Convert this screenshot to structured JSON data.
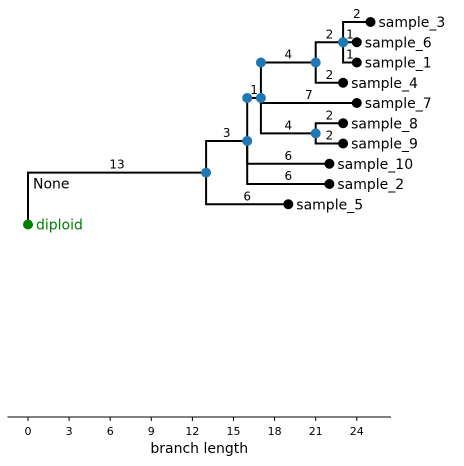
{
  "colors": {
    "internal_node": "#1f77b4",
    "leaf_node": "#000000",
    "root_node": "#008000"
  },
  "chart_data": {
    "type": "phylogenetic-tree",
    "xlabel": "branch length",
    "xticks": [
      0,
      3,
      6,
      9,
      12,
      15,
      18,
      21,
      24
    ],
    "xlim": [
      -1.5,
      26.5
    ],
    "root": {
      "id": "diploid",
      "label": "diploid",
      "x": 0
    },
    "root_note": "None",
    "nodes": [
      {
        "id": "n13",
        "parent": "diploid",
        "x": 13,
        "length": "13"
      },
      {
        "id": "n16a",
        "parent": "n13",
        "x": 16,
        "length": "3"
      },
      {
        "id": "sample_5",
        "parent": "n13",
        "x": 19,
        "length": "6",
        "label": "sample_5",
        "leaf": true
      },
      {
        "id": "n16b",
        "parent": "n16a",
        "x": 16,
        "length": ""
      },
      {
        "id": "sample_10",
        "parent": "n16a",
        "x": 22,
        "length": "6",
        "label": "sample_10",
        "leaf": true
      },
      {
        "id": "sample_2",
        "parent": "n16a",
        "x": 22,
        "length": "6",
        "label": "sample_2",
        "leaf": true
      },
      {
        "id": "n17a",
        "parent": "n16b",
        "x": 17,
        "length": "1"
      },
      {
        "id": "n17b",
        "parent": "n17a",
        "x": 17,
        "length": ""
      },
      {
        "id": "sample_7",
        "parent": "n17a",
        "x": 24,
        "length": "7",
        "label": "sample_7",
        "leaf": true
      },
      {
        "id": "n21a",
        "parent": "n17b",
        "x": 21,
        "length": "4"
      },
      {
        "id": "n21b",
        "parent": "n17a",
        "x": 21,
        "length": "4"
      },
      {
        "id": "n23a",
        "parent": "n21a",
        "x": 23,
        "length": "2"
      },
      {
        "id": "sample_4",
        "parent": "n21a",
        "x": 23,
        "length": "2",
        "label": "sample_4",
        "leaf": true
      },
      {
        "id": "sample_3",
        "parent": "n23a",
        "x": 25,
        "length": "2",
        "label": "sample_3",
        "leaf": true
      },
      {
        "id": "n23b",
        "parent": "n23a",
        "x": 23,
        "length": ""
      },
      {
        "id": "sample_1",
        "parent": "n23a",
        "x": 24,
        "length": "1",
        "label": "sample_1",
        "leaf": true
      },
      {
        "id": "sample_6",
        "parent": "n23b",
        "x": 24,
        "length": "1",
        "label": "sample_6",
        "leaf": true
      },
      {
        "id": "sample_8",
        "parent": "n21b",
        "x": 23,
        "length": "2",
        "label": "sample_8",
        "leaf": true
      },
      {
        "id": "sample_9",
        "parent": "n21b",
        "x": 23,
        "length": "2",
        "label": "sample_9",
        "leaf": true
      }
    ]
  }
}
